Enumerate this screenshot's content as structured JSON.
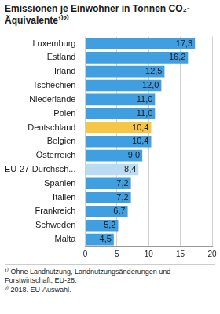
{
  "chart_data": {
    "type": "bar",
    "title": "Emissionen je Einwohner in Tonnen CO₂-Äquivalente¹⁾²⁾",
    "orientation": "horizontal",
    "categories": [
      "Luxemburg",
      "Estland",
      "Irland",
      "Tschechien",
      "Niederlande",
      "Polen",
      "Deutschland",
      "Belgien",
      "Österreich",
      "EU-27-Durchsch...",
      "Spanien",
      "Italien",
      "Frankreich",
      "Schweden",
      "Malta"
    ],
    "values": [
      17.3,
      16.2,
      12.5,
      12.0,
      11.0,
      11.0,
      10.4,
      10.4,
      9.0,
      8.4,
      7.2,
      7.2,
      6.7,
      5.2,
      4.5
    ],
    "value_labels": [
      "17,3",
      "16,2",
      "12,5",
      "12,0",
      "11,0",
      "11,0",
      "10,4",
      "10,4",
      "9,0",
      "8,4",
      "7,2",
      "7,2",
      "6,7",
      "5,2",
      "4,5"
    ],
    "colors": [
      "#3f9fe0",
      "#3f9fe0",
      "#3f9fe0",
      "#3f9fe0",
      "#3f9fe0",
      "#3f9fe0",
      "#f6c744",
      "#3f9fe0",
      "#3f9fe0",
      "#b9dcf3",
      "#3f9fe0",
      "#3f9fe0",
      "#3f9fe0",
      "#3f9fe0",
      "#3f9fe0"
    ],
    "data_labels": true,
    "xlim": [
      0,
      20
    ],
    "xticks": [
      0,
      5,
      10,
      15,
      20
    ],
    "grid": true,
    "annotations": [
      "¹⁾ Ohne Landnutzung, Landnutzungsänderungen und Forstwirtschaft; EU-28.",
      "²⁾ 2018. EU-Auswahl."
    ]
  }
}
